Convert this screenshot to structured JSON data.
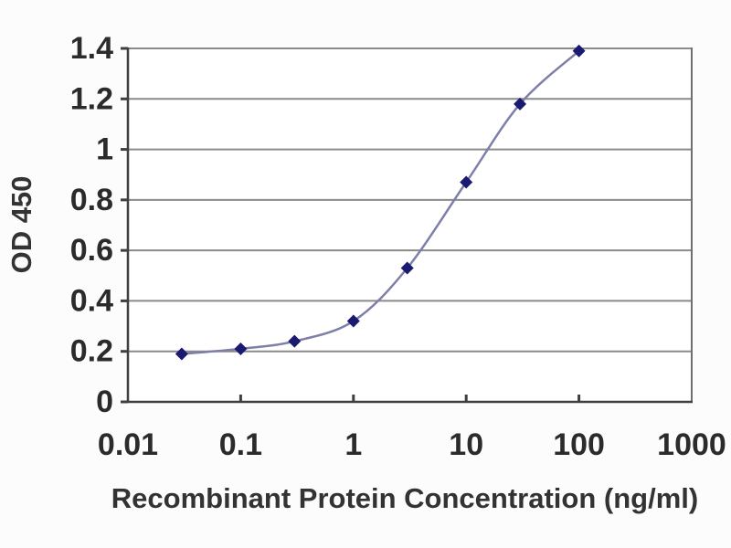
{
  "chart_data": {
    "type": "line",
    "x_scale": "log",
    "x": [
      0.03,
      0.1,
      0.3,
      1,
      3,
      10,
      30,
      100
    ],
    "values": [
      0.19,
      0.21,
      0.24,
      0.32,
      0.53,
      0.87,
      1.18,
      1.39
    ],
    "title": "",
    "xlabel": "Recombinant Protein Concentration (ng/ml)",
    "ylabel": "OD 450",
    "xlim": [
      0.01,
      1000
    ],
    "ylim": [
      0,
      1.4
    ],
    "x_ticks": [
      0.01,
      0.1,
      1,
      10,
      100,
      1000
    ],
    "x_tick_labels": [
      "0.01",
      "0.1",
      "1",
      "10",
      "100",
      "1000"
    ],
    "y_ticks": [
      0,
      0.2,
      0.4,
      0.6,
      0.8,
      1,
      1.2,
      1.4
    ],
    "y_tick_labels": [
      "0",
      "0.2",
      "0.4",
      "0.6",
      "0.8",
      "1",
      "1.2",
      "1.4"
    ],
    "grid": "horizontal",
    "legend": "none",
    "marker": "diamond",
    "line_style": "smooth",
    "colors": {
      "line": "#7d7fa8",
      "marker": "#1a1a72",
      "grid": "#8a8a8a",
      "axis": "#3f3f3f",
      "border": "#6f6f6f",
      "tick_text": "#2b2b2b",
      "axis_title_text": "#333333",
      "plot_background": "#ffffff",
      "page_background": "#fcfcfc"
    }
  }
}
